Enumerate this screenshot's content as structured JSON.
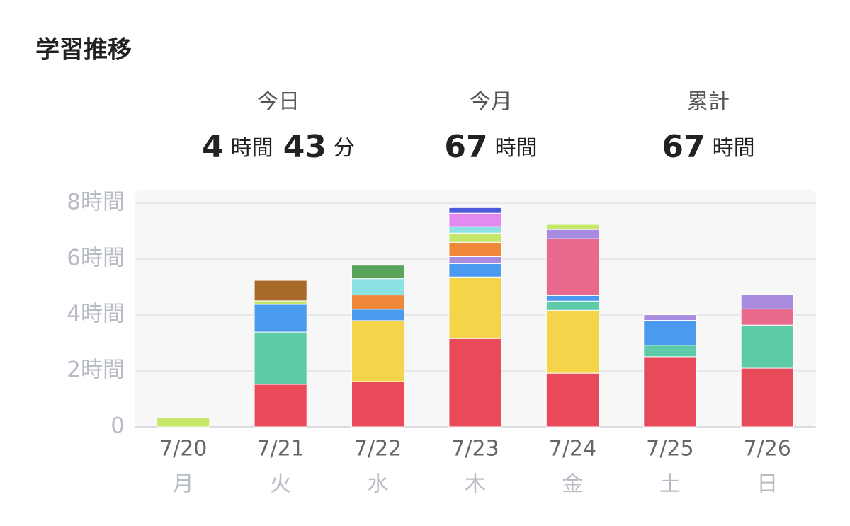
{
  "header": {
    "title": "学習推移"
  },
  "summary": [
    {
      "label": "今日",
      "parts": [
        {
          "value": 4,
          "unit": "時間"
        },
        {
          "value": 43,
          "unit": "分"
        }
      ]
    },
    {
      "label": "今月",
      "parts": [
        {
          "value": 67,
          "unit": "時間"
        }
      ]
    },
    {
      "label": "累計",
      "parts": [
        {
          "value": 67,
          "unit": "時間"
        }
      ]
    }
  ],
  "chart_data": {
    "type": "stacked-bar",
    "categories": [
      "7/20",
      "7/21",
      "7/22",
      "7/23",
      "7/24",
      "7/25",
      "7/26"
    ],
    "weekdays": [
      "月",
      "火",
      "水",
      "木",
      "金",
      "土",
      "日"
    ],
    "ylim": [
      0,
      8
    ],
    "yticks": [
      0,
      {
        "value": 2,
        "label": "2時間"
      },
      {
        "value": 4,
        "label": "4時間"
      },
      {
        "value": 6,
        "label": "6時間"
      },
      {
        "value": 8,
        "label": "8時間"
      }
    ],
    "grid": true,
    "series": [
      {
        "color": "#e84a5a",
        "values": [
          0,
          1.52,
          1.62,
          3.16,
          1.92,
          2.51,
          2.1
        ]
      },
      {
        "color": "#f5d44a",
        "values": [
          0,
          0,
          2.18,
          2.2,
          2.25,
          0,
          0
        ]
      },
      {
        "color": "#5dcba8",
        "values": [
          0,
          1.87,
          0,
          0,
          0.33,
          0.41,
          1.54
        ]
      },
      {
        "color": "#4a9aef",
        "values": [
          0,
          0.99,
          0.41,
          0.48,
          0.2,
          0.89,
          0
        ]
      },
      {
        "color": "#ea6a8e",
        "values": [
          0,
          0,
          0,
          0,
          2.03,
          0,
          0.58
        ]
      },
      {
        "color": "#a98be0",
        "values": [
          0,
          0,
          0,
          0.25,
          0.33,
          0.2,
          0.51
        ]
      },
      {
        "color": "#f0883a",
        "values": [
          0,
          0,
          0.51,
          0.51,
          0,
          0,
          0
        ]
      },
      {
        "color": "#c5e86a",
        "values": [
          0.33,
          0.13,
          0,
          0.33,
          0.18,
          0,
          0
        ]
      },
      {
        "color": "#8de3e3",
        "values": [
          0,
          0,
          0.58,
          0.23,
          0,
          0,
          0
        ]
      },
      {
        "color": "#a86a2a",
        "values": [
          0,
          0.73,
          0,
          0,
          0,
          0,
          0
        ]
      },
      {
        "color": "#5aa35a",
        "values": [
          0,
          0,
          0.48,
          0,
          0,
          0,
          0
        ]
      },
      {
        "color": "#e28af0",
        "values": [
          0,
          0,
          0,
          0.48,
          0,
          0,
          0
        ]
      },
      {
        "color": "#4a5ad8",
        "values": [
          0,
          0,
          0,
          0.2,
          0,
          0,
          0
        ]
      }
    ]
  }
}
